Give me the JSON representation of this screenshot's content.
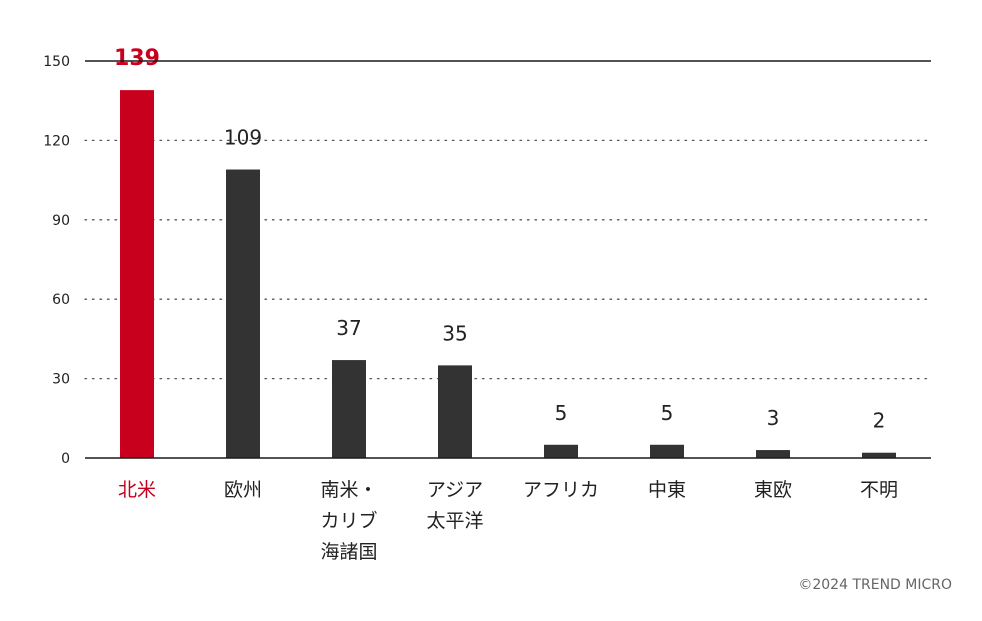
{
  "chart_data": {
    "type": "bar",
    "categories": [
      [
        "北米"
      ],
      [
        "欧州"
      ],
      [
        "南米・",
        "カリブ",
        "海諸国"
      ],
      [
        "アジア",
        "太平洋"
      ],
      [
        "アフリカ"
      ],
      [
        "中東"
      ],
      [
        "東欧"
      ],
      [
        "不明"
      ]
    ],
    "values": [
      139,
      109,
      37,
      35,
      5,
      5,
      3,
      2
    ],
    "highlight_index": 0,
    "ylim": [
      0,
      150
    ],
    "yticks": [
      0,
      30,
      60,
      90,
      120,
      150
    ],
    "grid": true,
    "title": "",
    "xlabel": "",
    "ylabel": ""
  },
  "colors": {
    "highlight": "#c8001e",
    "bar": "#333333",
    "axis": "#1a1a1a",
    "grid": "#555555"
  },
  "credit": "©2024 TREND MICRO"
}
